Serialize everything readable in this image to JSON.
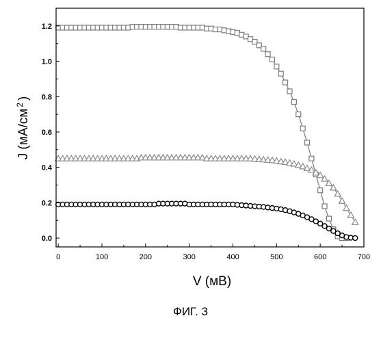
{
  "chart_data": {
    "type": "scatter",
    "xlabel": "V (мВ)",
    "ylabel_main": "J (мА/см",
    "ylabel_sup": "2",
    "ylabel_close": ")",
    "xlim": [
      -5,
      700
    ],
    "ylim": [
      -0.05,
      1.3
    ],
    "xticks": [
      0,
      100,
      200,
      300,
      400,
      500,
      600,
      700
    ],
    "xtick_labels": [
      "0",
      "100",
      "200",
      "300",
      "400",
      "500",
      "600",
      "700"
    ],
    "yticks": [
      0.0,
      0.2,
      0.4,
      0.6,
      0.8,
      1.0,
      1.2
    ],
    "ytick_labels": [
      "0.0",
      "0.2",
      "0.4",
      "0.6",
      "0.8",
      "1.0",
      "1.2"
    ],
    "series": [
      {
        "marker": "square",
        "color": "#7a7a7a",
        "line": true,
        "x": [
          0,
          10,
          20,
          30,
          40,
          50,
          60,
          70,
          80,
          90,
          100,
          110,
          120,
          130,
          140,
          150,
          160,
          170,
          180,
          190,
          200,
          210,
          220,
          230,
          240,
          250,
          260,
          270,
          280,
          290,
          300,
          310,
          320,
          330,
          340,
          350,
          360,
          370,
          380,
          390,
          400,
          410,
          420,
          430,
          440,
          450,
          460,
          470,
          480,
          490,
          500,
          510,
          520,
          530,
          540,
          550,
          560,
          570,
          580,
          590,
          600,
          610,
          620,
          630,
          640,
          650,
          660
        ],
        "y": [
          1.19,
          1.19,
          1.19,
          1.19,
          1.19,
          1.19,
          1.19,
          1.19,
          1.19,
          1.19,
          1.19,
          1.19,
          1.19,
          1.19,
          1.19,
          1.19,
          1.19,
          1.195,
          1.195,
          1.195,
          1.195,
          1.195,
          1.195,
          1.195,
          1.195,
          1.195,
          1.195,
          1.195,
          1.19,
          1.19,
          1.19,
          1.19,
          1.19,
          1.19,
          1.185,
          1.185,
          1.18,
          1.18,
          1.175,
          1.17,
          1.165,
          1.16,
          1.15,
          1.14,
          1.125,
          1.11,
          1.09,
          1.07,
          1.04,
          1.01,
          0.97,
          0.93,
          0.88,
          0.83,
          0.77,
          0.7,
          0.62,
          0.54,
          0.45,
          0.36,
          0.27,
          0.18,
          0.11,
          0.05,
          0.01,
          0.0,
          0.0
        ]
      },
      {
        "marker": "triangle",
        "color": "#8a8a8a",
        "line": true,
        "x": [
          0,
          10,
          20,
          30,
          40,
          50,
          60,
          70,
          80,
          90,
          100,
          110,
          120,
          130,
          140,
          150,
          160,
          170,
          180,
          190,
          200,
          210,
          220,
          230,
          240,
          250,
          260,
          270,
          280,
          290,
          300,
          310,
          320,
          330,
          340,
          350,
          360,
          370,
          380,
          390,
          400,
          410,
          420,
          430,
          440,
          450,
          460,
          470,
          480,
          490,
          500,
          510,
          520,
          530,
          540,
          550,
          560,
          570,
          580,
          590,
          600,
          610,
          620,
          630,
          640,
          650,
          660,
          670,
          680
        ],
        "y": [
          0.45,
          0.45,
          0.45,
          0.45,
          0.45,
          0.45,
          0.45,
          0.45,
          0.45,
          0.45,
          0.45,
          0.45,
          0.45,
          0.45,
          0.45,
          0.45,
          0.45,
          0.45,
          0.45,
          0.455,
          0.455,
          0.455,
          0.455,
          0.455,
          0.455,
          0.455,
          0.455,
          0.455,
          0.455,
          0.455,
          0.455,
          0.455,
          0.455,
          0.455,
          0.45,
          0.45,
          0.45,
          0.45,
          0.45,
          0.45,
          0.45,
          0.45,
          0.45,
          0.45,
          0.45,
          0.448,
          0.446,
          0.444,
          0.442,
          0.44,
          0.437,
          0.433,
          0.43,
          0.425,
          0.42,
          0.413,
          0.405,
          0.395,
          0.385,
          0.37,
          0.355,
          0.335,
          0.31,
          0.285,
          0.25,
          0.21,
          0.17,
          0.13,
          0.09
        ]
      },
      {
        "marker": "circle",
        "color": "#000000",
        "line": true,
        "x": [
          0,
          10,
          20,
          30,
          40,
          50,
          60,
          70,
          80,
          90,
          100,
          110,
          120,
          130,
          140,
          150,
          160,
          170,
          180,
          190,
          200,
          210,
          220,
          230,
          240,
          250,
          260,
          270,
          280,
          290,
          300,
          310,
          320,
          330,
          340,
          350,
          360,
          370,
          380,
          390,
          400,
          410,
          420,
          430,
          440,
          450,
          460,
          470,
          480,
          490,
          500,
          510,
          520,
          530,
          540,
          550,
          560,
          570,
          580,
          590,
          600,
          610,
          620,
          630,
          640,
          650,
          660,
          670,
          680
        ],
        "y": [
          0.19,
          0.19,
          0.19,
          0.19,
          0.19,
          0.19,
          0.19,
          0.19,
          0.19,
          0.19,
          0.19,
          0.19,
          0.19,
          0.19,
          0.19,
          0.19,
          0.19,
          0.19,
          0.19,
          0.19,
          0.19,
          0.19,
          0.19,
          0.195,
          0.195,
          0.195,
          0.195,
          0.195,
          0.195,
          0.195,
          0.19,
          0.19,
          0.19,
          0.19,
          0.19,
          0.19,
          0.19,
          0.19,
          0.19,
          0.19,
          0.19,
          0.188,
          0.186,
          0.184,
          0.182,
          0.18,
          0.178,
          0.176,
          0.173,
          0.17,
          0.167,
          0.163,
          0.158,
          0.152,
          0.145,
          0.137,
          0.128,
          0.118,
          0.107,
          0.095,
          0.082,
          0.068,
          0.054,
          0.04,
          0.027,
          0.015,
          0.006,
          0.002,
          0.0
        ]
      }
    ]
  },
  "caption": "ФИГ. 3"
}
